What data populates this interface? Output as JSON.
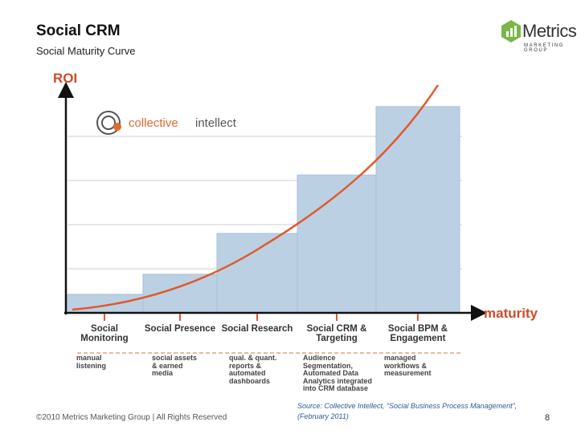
{
  "slide": {
    "title": "Social CRM",
    "subtitle": "Social Maturity Curve",
    "logo": {
      "name": "Metrics",
      "tagline": "MARKETING GROUP"
    },
    "footer": "©2010 Metrics Marketing Group | All Rights Reserved",
    "source": "Source:  Collective Intellect, “Social Business Process Management”, (February 2011)",
    "page_number": 8
  },
  "chart_data": {
    "type": "bar",
    "y_label": "ROI",
    "x_label": "maturity",
    "brand": {
      "first": "collective",
      "second": "intellect"
    },
    "categories": [
      "Social Monitoring",
      "Social Presence",
      "Social Research",
      "Social CRM & Targeting",
      "Social BPM & Engagement"
    ],
    "descriptions": [
      "manual listening",
      "social assets & earned media",
      "qual. & quant. reports & automated dashboards",
      "Audience Segmentation, Automated Data Analytics integrated into CRM database",
      "managed workflows & measurement"
    ],
    "values": [
      8.4,
      17.5,
      36,
      62.5,
      93.5
    ],
    "color": "#bcd0e4",
    "ylim": [
      0,
      100
    ],
    "yticks": [
      20,
      40,
      60,
      80
    ],
    "grid": true
  }
}
